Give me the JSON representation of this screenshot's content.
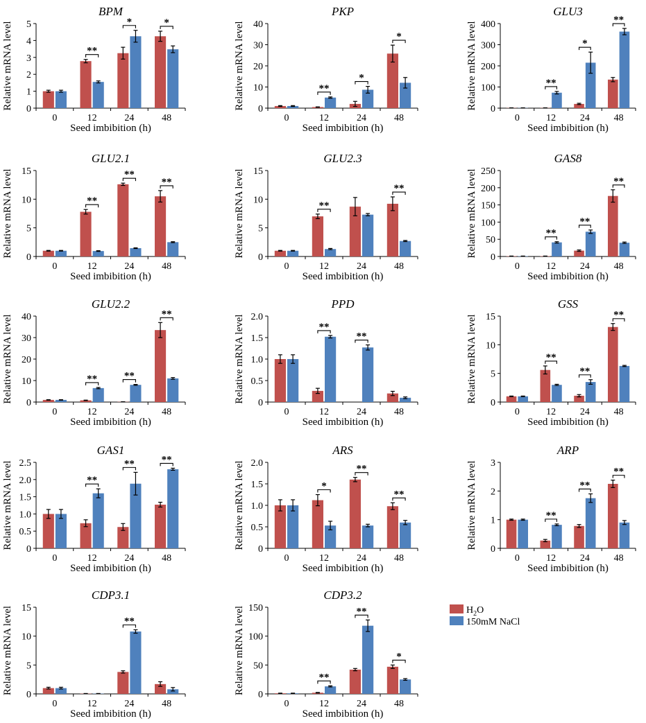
{
  "legend": [
    {
      "label": "H",
      "sub": "2",
      "suffix": "O",
      "color": "#C0504D"
    },
    {
      "label": "150mM NaCl",
      "color": "#4F81BD"
    }
  ],
  "chart_data": [
    {
      "type": "bar",
      "title": "BPM",
      "ylabel": "Relative mRNA level",
      "xlabel": "Seed imbibition (h)",
      "categories": [
        "0",
        "12",
        "24",
        "48"
      ],
      "ylim": [
        0,
        5
      ],
      "yticks": [
        "0",
        "1",
        "2",
        "3",
        "4",
        "5"
      ],
      "series": [
        {
          "name": "H2O",
          "values": [
            1.0,
            2.78,
            3.25,
            4.25
          ],
          "errors": [
            0.06,
            0.1,
            0.35,
            0.3
          ]
        },
        {
          "name": "150mM NaCl",
          "values": [
            1.0,
            1.55,
            4.25,
            3.48
          ],
          "errors": [
            0.06,
            0.06,
            0.35,
            0.2
          ]
        }
      ],
      "significance": [
        "",
        "**",
        "*",
        "*"
      ]
    },
    {
      "type": "bar",
      "title": "PKP",
      "ylabel": "Relative mRNA level",
      "xlabel": "Seed imbibition (h)",
      "categories": [
        "0",
        "12",
        "24",
        "48"
      ],
      "ylim": [
        0,
        40
      ],
      "yticks": [
        "0",
        "10",
        "20",
        "30",
        "40"
      ],
      "series": [
        {
          "name": "H2O",
          "values": [
            1.0,
            0.5,
            2.0,
            25.8
          ],
          "errors": [
            0.2,
            0.1,
            1.2,
            4.0
          ]
        },
        {
          "name": "150mM NaCl",
          "values": [
            1.0,
            5.0,
            8.7,
            12.0
          ],
          "errors": [
            0.2,
            0.3,
            1.6,
            2.5
          ]
        }
      ],
      "significance": [
        "",
        "**",
        "*",
        "*"
      ]
    },
    {
      "type": "bar",
      "title": "GLU3",
      "ylabel": "Relative mRNA level",
      "xlabel": "Seed imbibition (h)",
      "categories": [
        "0",
        "12",
        "24",
        "48"
      ],
      "ylim": [
        0,
        400
      ],
      "yticks": [
        "0",
        "100",
        "200",
        "300",
        "400"
      ],
      "series": [
        {
          "name": "H2O",
          "values": [
            1,
            1,
            20,
            135
          ],
          "errors": [
            0.5,
            0.5,
            3,
            10
          ]
        },
        {
          "name": "150mM NaCl",
          "values": [
            1,
            73,
            215,
            362
          ],
          "errors": [
            0.5,
            6,
            50,
            15
          ]
        }
      ],
      "significance": [
        "",
        "**",
        "*",
        "**"
      ]
    },
    {
      "type": "bar",
      "title": "GLU2.1",
      "ylabel": "Relative mRNA level",
      "xlabel": "Seed imbibition (h)",
      "categories": [
        "0",
        "12",
        "24",
        "48"
      ],
      "ylim": [
        0,
        15
      ],
      "yticks": [
        "0",
        "5",
        "10",
        "15"
      ],
      "series": [
        {
          "name": "H2O",
          "values": [
            1.0,
            7.8,
            12.6,
            10.5
          ],
          "errors": [
            0.06,
            0.4,
            0.2,
            1.0
          ]
        },
        {
          "name": "150mM NaCl",
          "values": [
            1.0,
            0.95,
            1.45,
            2.5
          ],
          "errors": [
            0.06,
            0.06,
            0.06,
            0.08
          ]
        }
      ],
      "significance": [
        "",
        "**",
        "**",
        "**"
      ]
    },
    {
      "type": "bar",
      "title": "GLU2.3",
      "ylabel": "Relative mRNA level",
      "xlabel": "Seed imbibition (h)",
      "categories": [
        "0",
        "12",
        "24",
        "48"
      ],
      "ylim": [
        0,
        15
      ],
      "yticks": [
        "0",
        "5",
        "10",
        "15"
      ],
      "series": [
        {
          "name": "H2O",
          "values": [
            1.0,
            7.0,
            8.7,
            9.2
          ],
          "errors": [
            0.06,
            0.4,
            1.6,
            1.2
          ]
        },
        {
          "name": "150mM NaCl",
          "values": [
            1.0,
            1.3,
            7.3,
            2.7
          ],
          "errors": [
            0.06,
            0.1,
            0.2,
            0.1
          ]
        }
      ],
      "significance": [
        "",
        "**",
        "",
        "**"
      ]
    },
    {
      "type": "bar",
      "title": "GAS8",
      "ylabel": "Relative mRNA level",
      "xlabel": "Seed imbibition (h)",
      "categories": [
        "0",
        "12",
        "24",
        "48"
      ],
      "ylim": [
        0,
        250
      ],
      "yticks": [
        "0",
        "50",
        "100",
        "150",
        "200",
        "250"
      ],
      "series": [
        {
          "name": "H2O",
          "values": [
            1,
            1,
            17,
            176
          ],
          "errors": [
            0.3,
            0.3,
            2,
            18
          ]
        },
        {
          "name": "150mM NaCl",
          "values": [
            1,
            41,
            72,
            40
          ],
          "errors": [
            0.3,
            2,
            5,
            2
          ]
        }
      ],
      "significance": [
        "",
        "**",
        "**",
        "**"
      ]
    },
    {
      "type": "bar",
      "title": "GLU2.2",
      "ylabel": "Relative mRNA level",
      "xlabel": "Seed imbibition (h)",
      "categories": [
        "0",
        "12",
        "24",
        "48"
      ],
      "ylim": [
        0,
        40
      ],
      "yticks": [
        "0",
        "10",
        "20",
        "30",
        "40"
      ],
      "series": [
        {
          "name": "H2O",
          "values": [
            1.0,
            0.8,
            0.1,
            33.5
          ],
          "errors": [
            0.1,
            0.1,
            0.05,
            3.5
          ]
        },
        {
          "name": "150mM NaCl",
          "values": [
            1.0,
            6.5,
            8.0,
            11.0
          ],
          "errors": [
            0.1,
            0.3,
            0.2,
            0.4
          ]
        }
      ],
      "significance": [
        "",
        "**",
        "**",
        "**"
      ]
    },
    {
      "type": "bar",
      "title": "PPD",
      "ylabel": "Relative mRNA level",
      "xlabel": "Seed imbibition (h)",
      "categories": [
        "0",
        "12",
        "24",
        "48"
      ],
      "ylim": [
        0,
        2.0
      ],
      "yticks": [
        "0",
        "0.5",
        "1.0",
        "1.5",
        "2.0"
      ],
      "series": [
        {
          "name": "H2O",
          "values": [
            1.0,
            0.26,
            0.0,
            0.2
          ],
          "errors": [
            0.1,
            0.06,
            0.0,
            0.05
          ]
        },
        {
          "name": "150mM NaCl",
          "values": [
            1.0,
            1.52,
            1.27,
            0.1
          ],
          "errors": [
            0.1,
            0.03,
            0.06,
            0.02
          ]
        }
      ],
      "significance": [
        "",
        "**",
        "**",
        ""
      ]
    },
    {
      "type": "bar",
      "title": "GSS",
      "ylabel": "Relative mRNA level",
      "xlabel": "Seed imbibition (h)",
      "categories": [
        "0",
        "12",
        "24",
        "48"
      ],
      "ylim": [
        0,
        15
      ],
      "yticks": [
        "0",
        "5",
        "10",
        "15"
      ],
      "series": [
        {
          "name": "H2O",
          "values": [
            1.0,
            5.6,
            1.1,
            13.1
          ],
          "errors": [
            0.05,
            0.7,
            0.2,
            0.6
          ]
        },
        {
          "name": "150mM NaCl",
          "values": [
            1.0,
            3.0,
            3.5,
            6.3
          ],
          "errors": [
            0.05,
            0.1,
            0.4,
            0.1
          ]
        }
      ],
      "significance": [
        "",
        "**",
        "**",
        "**"
      ]
    },
    {
      "type": "bar",
      "title": "GAS1",
      "ylabel": "Relative mRNA level",
      "xlabel": "Seed imbibition (h)",
      "categories": [
        "0",
        "12",
        "24",
        "48"
      ],
      "ylim": [
        0,
        2.5
      ],
      "yticks": [
        "0",
        "0.5",
        "1.0",
        "1.5",
        "2.0",
        "2.5"
      ],
      "series": [
        {
          "name": "H2O",
          "values": [
            1.0,
            0.73,
            0.62,
            1.27
          ],
          "errors": [
            0.13,
            0.1,
            0.1,
            0.07
          ]
        },
        {
          "name": "150mM NaCl",
          "values": [
            1.0,
            1.6,
            1.88,
            2.3
          ],
          "errors": [
            0.13,
            0.13,
            0.33,
            0.03
          ]
        }
      ],
      "significance": [
        "",
        "**",
        "**",
        "**"
      ]
    },
    {
      "type": "bar",
      "title": "ARS",
      "ylabel": "Relative mRNA level",
      "xlabel": "Seed imbibition (h)",
      "categories": [
        "0",
        "12",
        "24",
        "48"
      ],
      "ylim": [
        0,
        2.0
      ],
      "yticks": [
        "0",
        "0.5",
        "1.0",
        "1.5",
        "2.0"
      ],
      "series": [
        {
          "name": "H2O",
          "values": [
            1.0,
            1.12,
            1.6,
            0.98
          ],
          "errors": [
            0.13,
            0.13,
            0.05,
            0.08
          ]
        },
        {
          "name": "150mM NaCl",
          "values": [
            1.0,
            0.53,
            0.53,
            0.6
          ],
          "errors": [
            0.13,
            0.1,
            0.03,
            0.05
          ]
        }
      ],
      "significance": [
        "",
        "*",
        "**",
        "**"
      ]
    },
    {
      "type": "bar",
      "title": "ARP",
      "ylabel": "Relative mRNA level",
      "xlabel": "Seed imbibition (h)",
      "categories": [
        "0",
        "12",
        "24",
        "48"
      ],
      "ylim": [
        0,
        3
      ],
      "yticks": [
        "0",
        "1",
        "2",
        "3"
      ],
      "series": [
        {
          "name": "H2O",
          "values": [
            1.0,
            0.27,
            0.78,
            2.25
          ],
          "errors": [
            0.02,
            0.04,
            0.05,
            0.13
          ]
        },
        {
          "name": "150mM NaCl",
          "values": [
            1.0,
            0.82,
            1.75,
            0.9
          ],
          "errors": [
            0.02,
            0.03,
            0.15,
            0.07
          ]
        }
      ],
      "significance": [
        "",
        "**",
        "**",
        "**"
      ]
    },
    {
      "type": "bar",
      "title": "CDP3.1",
      "ylabel": "Relative mRNA level",
      "xlabel": "Seed imbibition (h)",
      "categories": [
        "0",
        "12",
        "24",
        "48"
      ],
      "ylim": [
        0,
        15
      ],
      "yticks": [
        "0",
        "5",
        "10",
        "15"
      ],
      "series": [
        {
          "name": "H2O",
          "values": [
            1.0,
            0.05,
            3.8,
            1.7
          ],
          "errors": [
            0.15,
            0.02,
            0.2,
            0.4
          ]
        },
        {
          "name": "150mM NaCl",
          "values": [
            1.0,
            0.05,
            10.8,
            0.8
          ],
          "errors": [
            0.15,
            0.02,
            0.3,
            0.3
          ]
        }
      ],
      "significance": [
        "",
        "",
        "**",
        ""
      ]
    },
    {
      "type": "bar",
      "title": "CDP3.2",
      "ylabel": "Relative mRNA level",
      "xlabel": "Seed imbibition (h)",
      "categories": [
        "0",
        "12",
        "24",
        "48"
      ],
      "ylim": [
        0,
        150
      ],
      "yticks": [
        "0",
        "50",
        "100",
        "150"
      ],
      "series": [
        {
          "name": "H2O",
          "values": [
            1,
            2,
            42,
            47
          ],
          "errors": [
            0.3,
            0.5,
            2,
            3
          ]
        },
        {
          "name": "150mM NaCl",
          "values": [
            1,
            13,
            118,
            25
          ],
          "errors": [
            0.3,
            1,
            10,
            1.5
          ]
        }
      ],
      "significance": [
        "",
        "**",
        "**",
        "*"
      ]
    }
  ]
}
